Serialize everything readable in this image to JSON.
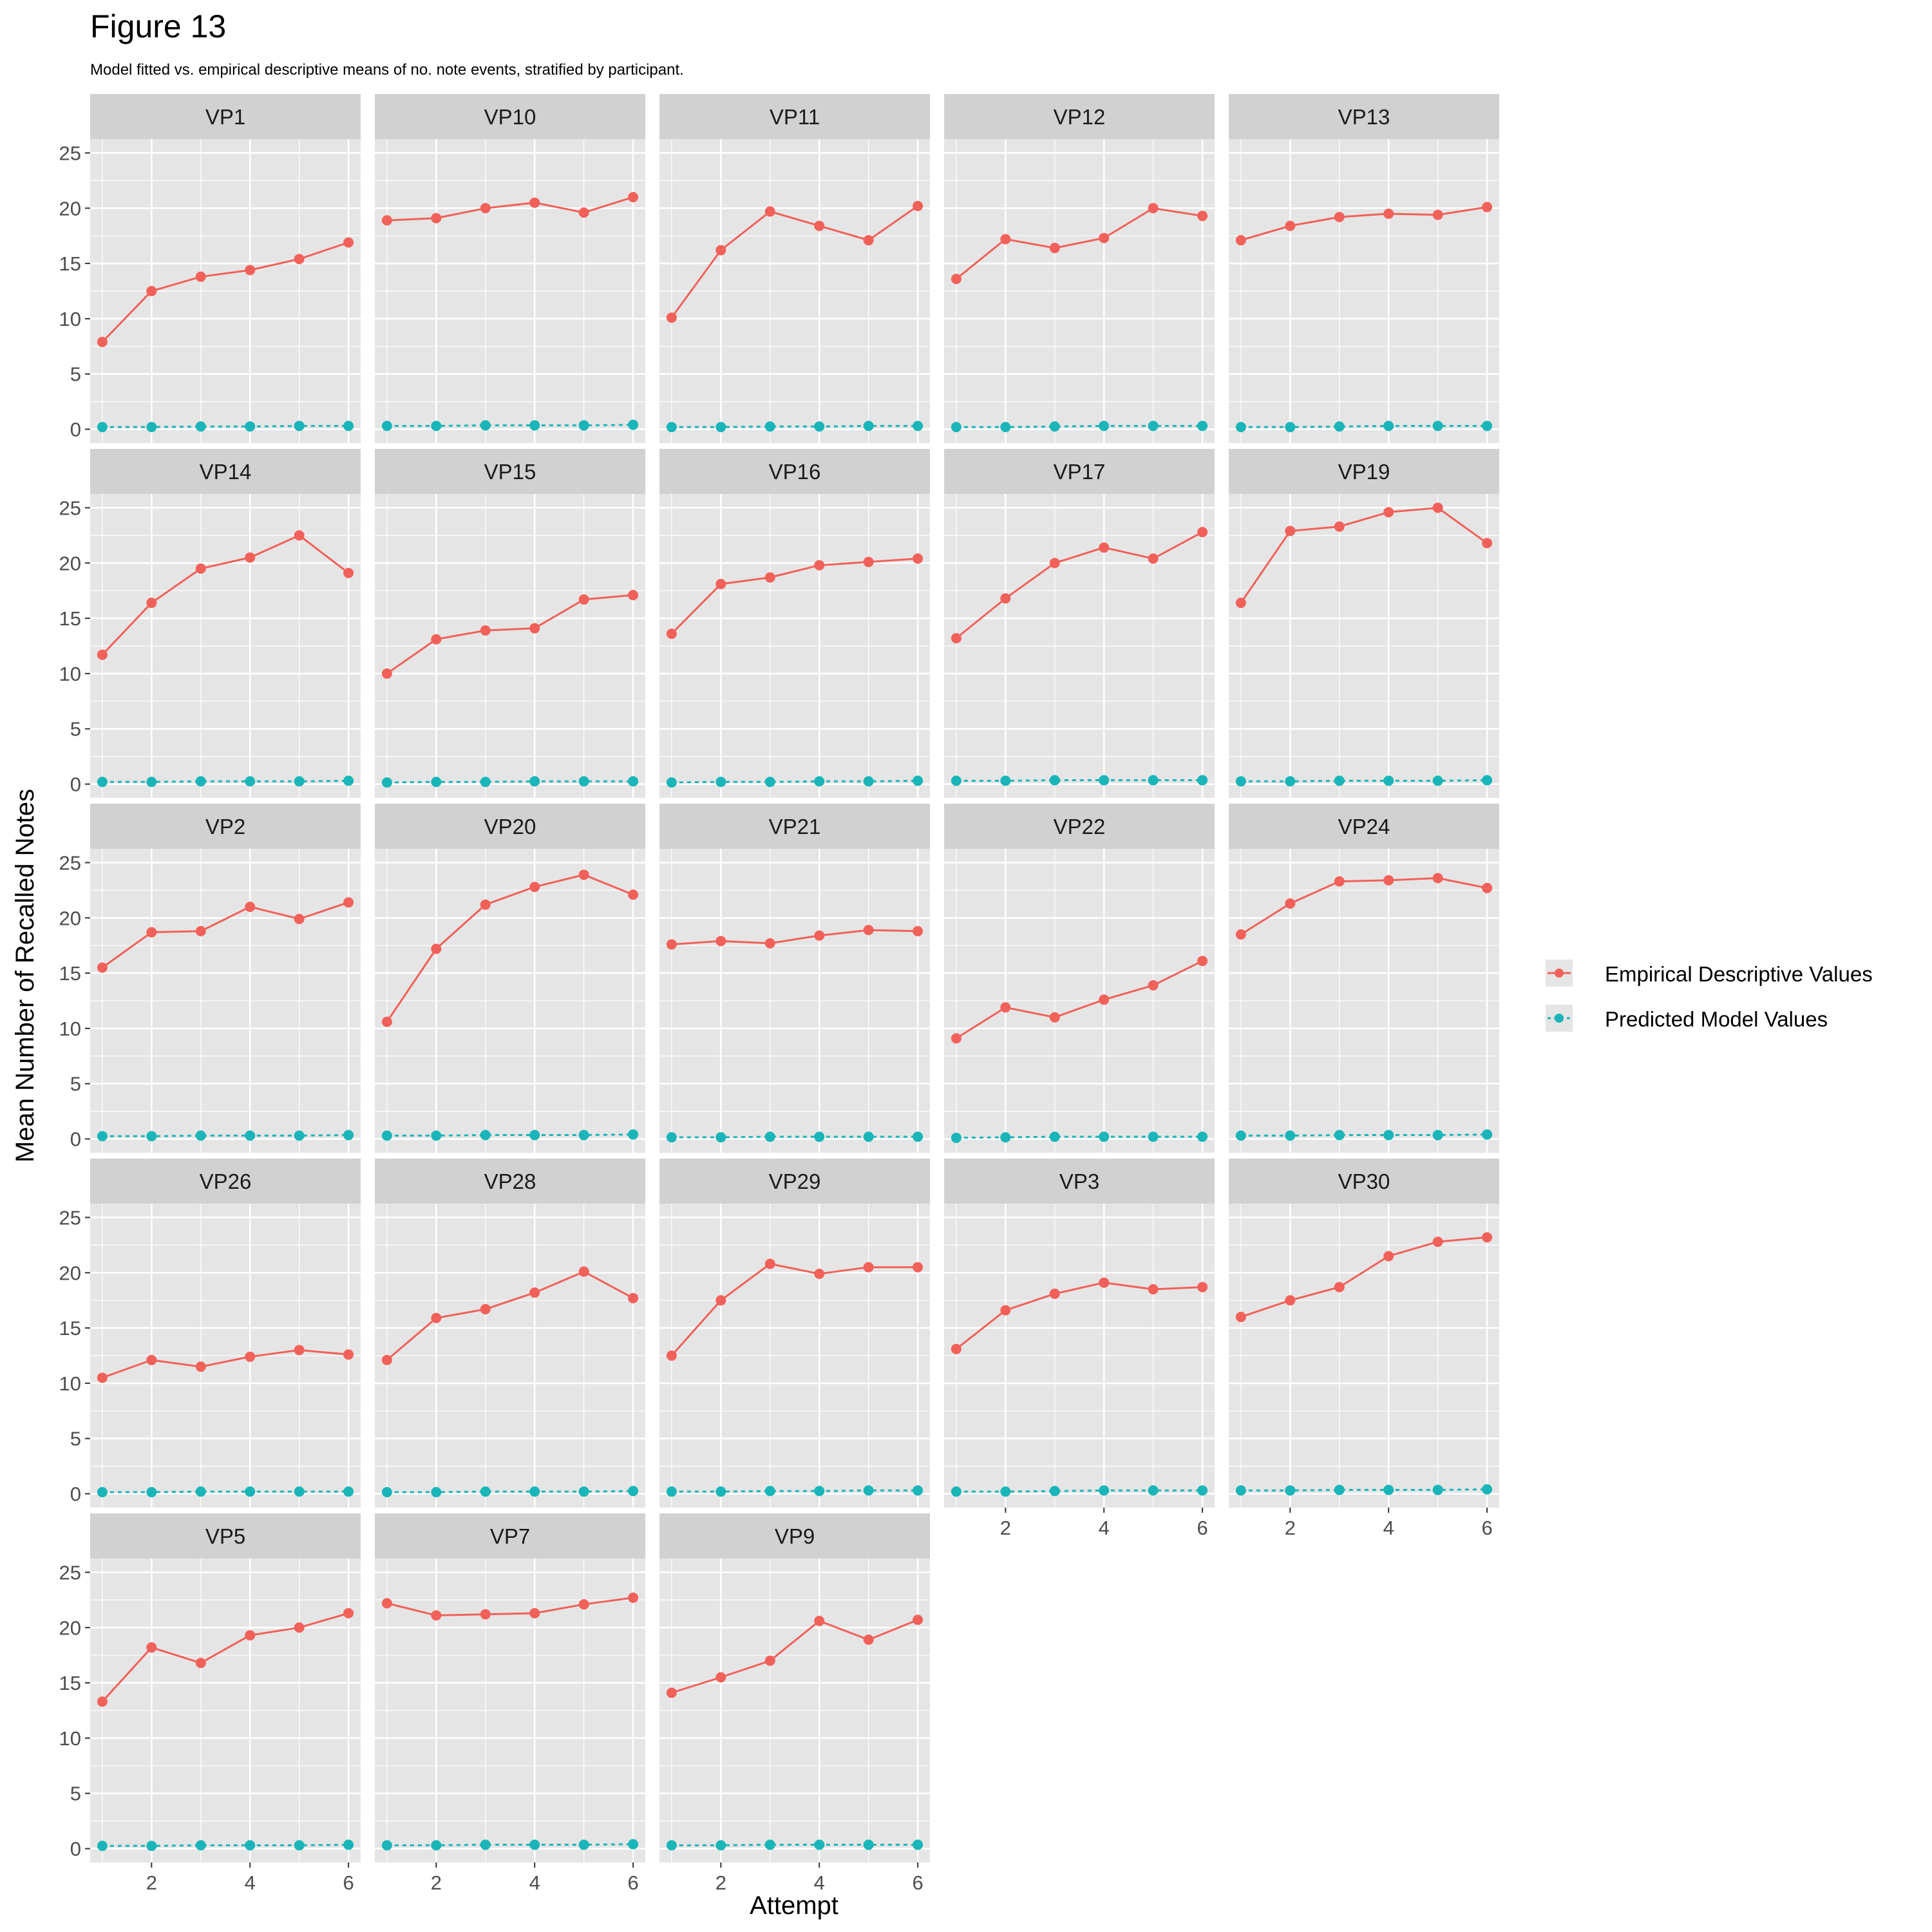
{
  "figure": {
    "title": "Figure 13",
    "subtitle": "Model fitted vs. empirical descriptive means of no. note events, stratified by participant."
  },
  "colors": {
    "panel_background": "#e5e5e5",
    "strip_background": "#d1d1d1",
    "grid": "#ffffff",
    "empirical": "#f1615a",
    "predicted": "#1ab5b8",
    "axis_text": "#4d4d4d"
  },
  "chart_data": {
    "type": "line",
    "facet_by": "participant",
    "facet_layout": {
      "columns": 5,
      "rows": 5
    },
    "xlabel": "Attempt",
    "ylabel": "Mean Number of Recalled Notes",
    "xlim": [
      1,
      6
    ],
    "ylim": [
      0,
      25
    ],
    "x_ticks": [
      2,
      4,
      6
    ],
    "y_ticks": [
      0,
      5,
      10,
      15,
      20,
      25
    ],
    "grid": true,
    "legend_position": "right",
    "x": [
      1,
      2,
      3,
      4,
      5,
      6
    ],
    "series_names": [
      "Empirical Descriptive Values",
      "Predicted Model Values"
    ],
    "panels": [
      {
        "label": "VP1",
        "empirical": [
          7.9,
          12.5,
          13.8,
          14.4,
          15.4,
          16.9
        ],
        "predicted": [
          0.2,
          0.2,
          0.25,
          0.25,
          0.3,
          0.3
        ]
      },
      {
        "label": "VP10",
        "empirical": [
          18.9,
          19.1,
          20.0,
          20.5,
          19.6,
          21.0
        ],
        "predicted": [
          0.3,
          0.3,
          0.35,
          0.35,
          0.35,
          0.4
        ]
      },
      {
        "label": "VP11",
        "empirical": [
          10.1,
          16.2,
          19.7,
          18.4,
          17.1,
          20.2
        ],
        "predicted": [
          0.2,
          0.2,
          0.25,
          0.25,
          0.3,
          0.3
        ]
      },
      {
        "label": "VP12",
        "empirical": [
          13.6,
          17.2,
          16.4,
          17.3,
          20.0,
          19.3
        ],
        "predicted": [
          0.2,
          0.2,
          0.25,
          0.3,
          0.3,
          0.3
        ]
      },
      {
        "label": "VP13",
        "empirical": [
          17.1,
          18.4,
          19.2,
          19.5,
          19.4,
          20.1
        ],
        "predicted": [
          0.2,
          0.2,
          0.25,
          0.3,
          0.3,
          0.3
        ]
      },
      {
        "label": "VP14",
        "empirical": [
          11.7,
          16.4,
          19.5,
          20.5,
          22.5,
          19.1
        ],
        "predicted": [
          0.2,
          0.2,
          0.25,
          0.25,
          0.25,
          0.3
        ]
      },
      {
        "label": "VP15",
        "empirical": [
          10.0,
          13.1,
          13.9,
          14.1,
          16.7,
          17.1
        ],
        "predicted": [
          0.15,
          0.2,
          0.2,
          0.25,
          0.25,
          0.25
        ]
      },
      {
        "label": "VP16",
        "empirical": [
          13.6,
          18.1,
          18.7,
          19.8,
          20.1,
          20.4
        ],
        "predicted": [
          0.15,
          0.2,
          0.2,
          0.25,
          0.25,
          0.3
        ]
      },
      {
        "label": "VP17",
        "empirical": [
          13.2,
          16.8,
          20.0,
          21.4,
          20.4,
          22.8
        ],
        "predicted": [
          0.3,
          0.3,
          0.35,
          0.35,
          0.35,
          0.35
        ]
      },
      {
        "label": "VP19",
        "empirical": [
          16.4,
          22.9,
          23.3,
          24.6,
          25.0,
          21.8
        ],
        "predicted": [
          0.25,
          0.25,
          0.3,
          0.3,
          0.3,
          0.35
        ]
      },
      {
        "label": "VP2",
        "empirical": [
          15.5,
          18.7,
          18.8,
          21.0,
          19.9,
          21.4
        ],
        "predicted": [
          0.25,
          0.25,
          0.3,
          0.3,
          0.3,
          0.35
        ]
      },
      {
        "label": "VP20",
        "empirical": [
          10.6,
          17.2,
          21.2,
          22.8,
          23.9,
          22.1
        ],
        "predicted": [
          0.3,
          0.3,
          0.35,
          0.35,
          0.35,
          0.4
        ]
      },
      {
        "label": "VP21",
        "empirical": [
          17.6,
          17.9,
          17.7,
          18.4,
          18.9,
          18.8
        ],
        "predicted": [
          0.15,
          0.15,
          0.2,
          0.2,
          0.2,
          0.2
        ]
      },
      {
        "label": "VP22",
        "empirical": [
          9.1,
          11.9,
          11.0,
          12.6,
          13.9,
          16.1
        ],
        "predicted": [
          0.1,
          0.15,
          0.2,
          0.2,
          0.2,
          0.2
        ]
      },
      {
        "label": "VP24",
        "empirical": [
          18.5,
          21.3,
          23.3,
          23.4,
          23.6,
          22.7
        ],
        "predicted": [
          0.3,
          0.3,
          0.35,
          0.35,
          0.35,
          0.4
        ]
      },
      {
        "label": "VP26",
        "empirical": [
          10.5,
          12.1,
          11.5,
          12.4,
          13.0,
          12.6
        ],
        "predicted": [
          0.15,
          0.15,
          0.2,
          0.2,
          0.2,
          0.2
        ]
      },
      {
        "label": "VP28",
        "empirical": [
          12.1,
          15.9,
          16.7,
          18.2,
          20.1,
          17.7
        ],
        "predicted": [
          0.15,
          0.15,
          0.2,
          0.2,
          0.2,
          0.25
        ]
      },
      {
        "label": "VP29",
        "empirical": [
          12.5,
          17.5,
          20.8,
          19.9,
          20.5,
          20.5
        ],
        "predicted": [
          0.2,
          0.2,
          0.25,
          0.25,
          0.3,
          0.3
        ]
      },
      {
        "label": "VP3",
        "empirical": [
          13.1,
          16.6,
          18.1,
          19.1,
          18.5,
          18.7
        ],
        "predicted": [
          0.2,
          0.2,
          0.25,
          0.3,
          0.3,
          0.3
        ]
      },
      {
        "label": "VP30",
        "empirical": [
          16.0,
          17.5,
          18.7,
          21.5,
          22.8,
          23.2
        ],
        "predicted": [
          0.3,
          0.3,
          0.35,
          0.35,
          0.35,
          0.4
        ]
      },
      {
        "label": "VP5",
        "empirical": [
          13.3,
          18.2,
          16.8,
          19.3,
          20.0,
          21.3
        ],
        "predicted": [
          0.25,
          0.25,
          0.3,
          0.3,
          0.3,
          0.35
        ]
      },
      {
        "label": "VP7",
        "empirical": [
          22.2,
          21.1,
          21.2,
          21.3,
          22.1,
          22.7
        ],
        "predicted": [
          0.3,
          0.3,
          0.35,
          0.35,
          0.35,
          0.4
        ]
      },
      {
        "label": "VP9",
        "empirical": [
          14.1,
          15.5,
          17.0,
          20.6,
          18.9,
          20.7
        ],
        "predicted": [
          0.3,
          0.3,
          0.35,
          0.35,
          0.35,
          0.35
        ]
      }
    ]
  }
}
